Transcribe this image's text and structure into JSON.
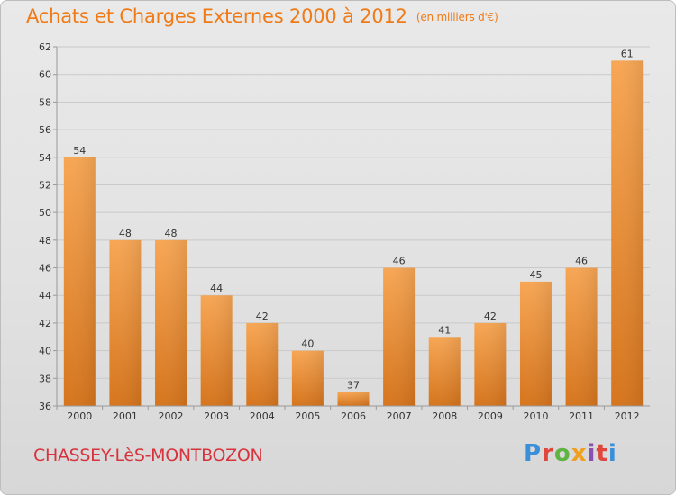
{
  "header": {
    "title": "Achats et Charges Externes 2000 à 2012",
    "unit": "(en milliers d'€)"
  },
  "footer": {
    "commune": "CHASSEY-LèS-MONTBOZON"
  },
  "logo": {
    "text": "Proxiti",
    "colors": [
      "#3a8fd8",
      "#e0463d",
      "#5fb444",
      "#f0a020",
      "#8a4fb0",
      "#e0463d",
      "#3a8fd8"
    ]
  },
  "colors": {
    "bar_light": "#f6a552",
    "bar_dark": "#d8771f",
    "title": "#f07a16",
    "commune": "#d8333c"
  },
  "chart_data": {
    "type": "bar",
    "categories": [
      "2000",
      "2001",
      "2002",
      "2003",
      "2004",
      "2005",
      "2006",
      "2007",
      "2008",
      "2009",
      "2010",
      "2011",
      "2012"
    ],
    "values": [
      54,
      48,
      48,
      44,
      42,
      40,
      37,
      46,
      41,
      42,
      45,
      46,
      61
    ],
    "title": "Achats et Charges Externes 2000 à 2012",
    "xlabel": "",
    "ylabel": "",
    "ylim": [
      36,
      62
    ],
    "yticks": [
      36,
      38,
      40,
      42,
      44,
      46,
      48,
      50,
      52,
      54,
      56,
      58,
      60,
      62
    ],
    "grid": true,
    "legend": "none"
  }
}
